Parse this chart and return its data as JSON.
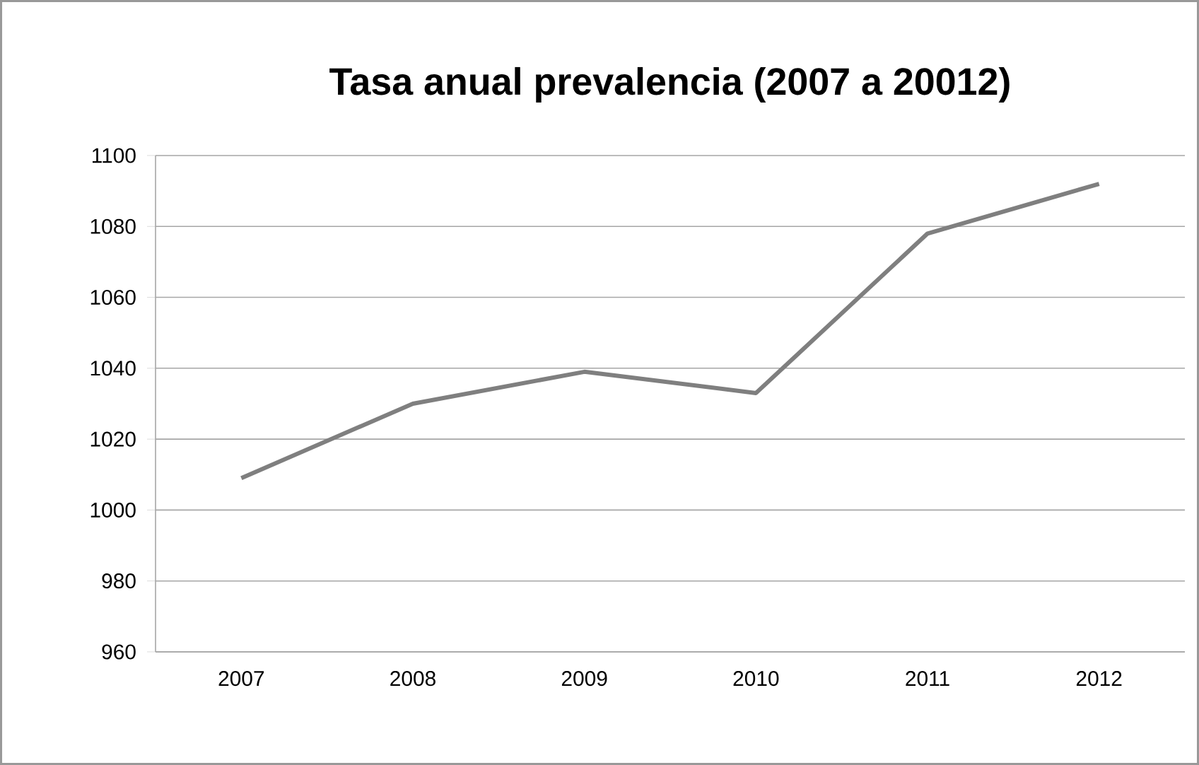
{
  "chart_data": {
    "type": "line",
    "title": "Tasa anual prevalencia (2007 a 20012)",
    "categories": [
      "2007",
      "2008",
      "2009",
      "2010",
      "2011",
      "2012"
    ],
    "values": [
      1009,
      1030,
      1039,
      1033,
      1078,
      1092
    ],
    "color": "#7f7f7f",
    "ylim": [
      960,
      1100
    ],
    "yticks": [
      960,
      980,
      1000,
      1020,
      1040,
      1060,
      1080,
      1100
    ],
    "grid": "y",
    "marker": "none",
    "line_style": "solid"
  }
}
